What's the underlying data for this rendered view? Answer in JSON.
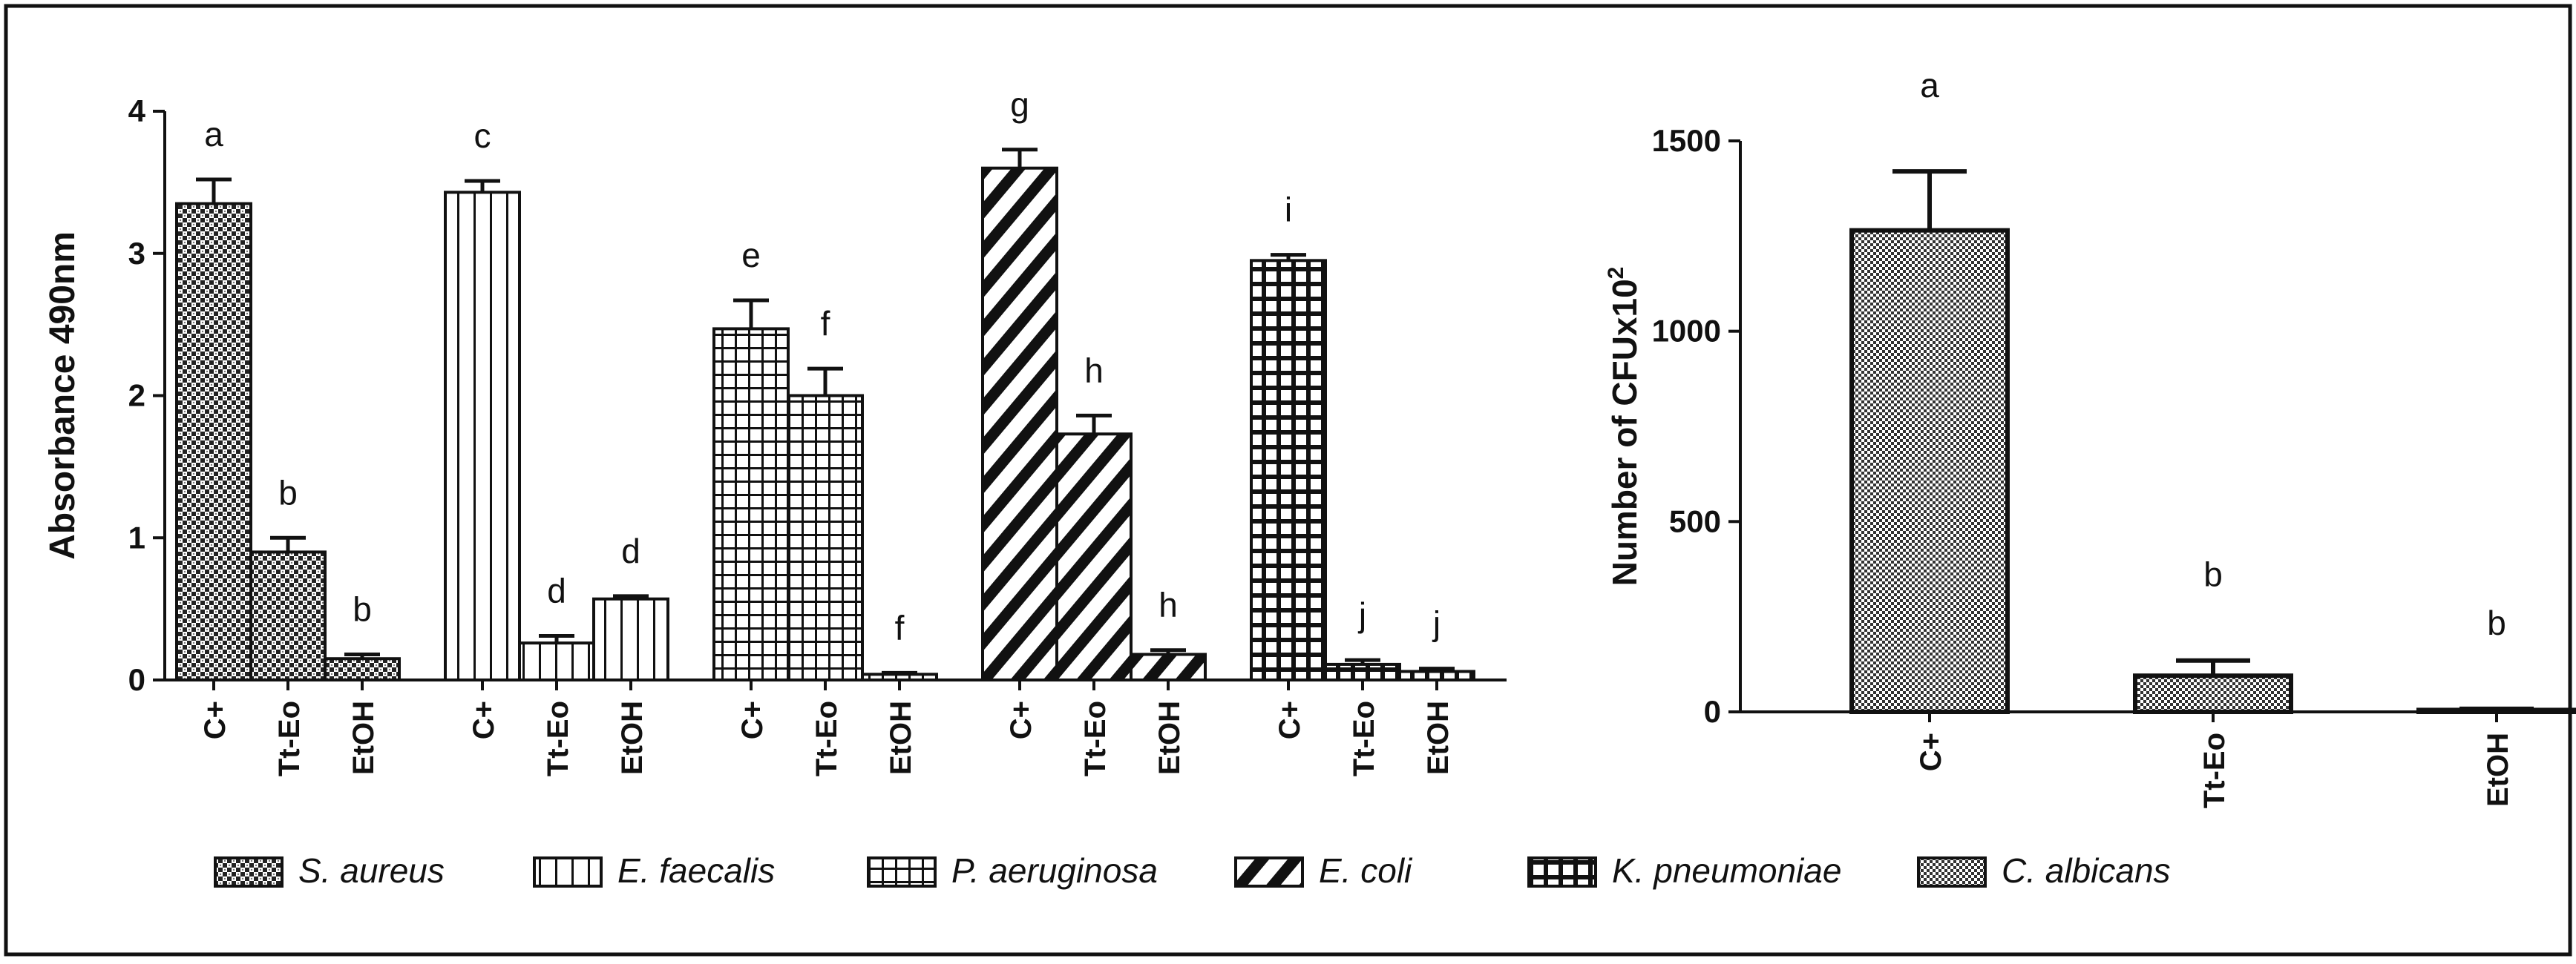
{
  "colors": {
    "frame": "#111111",
    "ink": "#111111",
    "fill": "#ffffff"
  },
  "chart_data": [
    {
      "type": "bar",
      "ylabel": "Absorbance 490nm",
      "ylim": [
        0,
        4
      ],
      "yticks": [
        "0",
        "1",
        "2",
        "3",
        "4"
      ],
      "groups": [
        {
          "name": "S. aureus",
          "pattern": "checker",
          "categories": [
            "C+",
            "Tt-Eo",
            "EtOH"
          ],
          "values": [
            3.35,
            0.9,
            0.15
          ],
          "errors": [
            0.17,
            0.1,
            0.03
          ],
          "letters": [
            "a",
            "b",
            "b"
          ]
        },
        {
          "name": "E. faecalis",
          "pattern": "vlines",
          "categories": [
            "C+",
            "Tt-Eo",
            "EtOH"
          ],
          "values": [
            3.43,
            0.26,
            0.57
          ],
          "errors": [
            0.08,
            0.05,
            0.02
          ],
          "letters": [
            "c",
            "d",
            "d"
          ]
        },
        {
          "name": "P. aeruginosa",
          "pattern": "grid",
          "categories": [
            "C+",
            "Tt-Eo",
            "EtOH"
          ],
          "values": [
            2.47,
            2.0,
            0.04
          ],
          "errors": [
            0.2,
            0.19,
            0.01
          ],
          "letters": [
            "e",
            "f",
            "f"
          ]
        },
        {
          "name": "E. coli",
          "pattern": "diag",
          "categories": [
            "C+",
            "Tt-Eo",
            "EtOH"
          ],
          "values": [
            3.6,
            1.73,
            0.18
          ],
          "errors": [
            0.13,
            0.13,
            0.03
          ],
          "letters": [
            "g",
            "h",
            "h"
          ]
        },
        {
          "name": "K. pneumoniae",
          "pattern": "bold",
          "categories": [
            "C+",
            "Tt-Eo",
            "EtOH"
          ],
          "values": [
            2.95,
            0.11,
            0.06
          ],
          "errors": [
            0.04,
            0.03,
            0.02
          ],
          "letters": [
            "i",
            "j",
            "j"
          ]
        }
      ]
    },
    {
      "type": "bar",
      "ylabel_main": "Number of CFUx10",
      "ylabel_sup": "2",
      "ylim": [
        0,
        1500
      ],
      "yticks": [
        "0",
        "500",
        "1000",
        "1500"
      ],
      "series": [
        {
          "name": "C. albicans",
          "pattern": "dense",
          "categories": [
            "C+",
            "Tt-Eo",
            "EtOH"
          ],
          "values": [
            1265,
            95,
            5
          ],
          "errors": [
            155,
            40,
            3
          ],
          "letters": [
            "a",
            "b",
            "b"
          ]
        }
      ]
    }
  ],
  "legend": [
    {
      "label": "S. aureus",
      "pattern": "checker"
    },
    {
      "label": "E. faecalis",
      "pattern": "vlines"
    },
    {
      "label": "P. aeruginosa",
      "pattern": "grid"
    },
    {
      "label": "E. coli",
      "pattern": "diag"
    },
    {
      "label": "K. pneumoniae",
      "pattern": "bold"
    },
    {
      "label": "C. albicans",
      "pattern": "dense"
    }
  ]
}
